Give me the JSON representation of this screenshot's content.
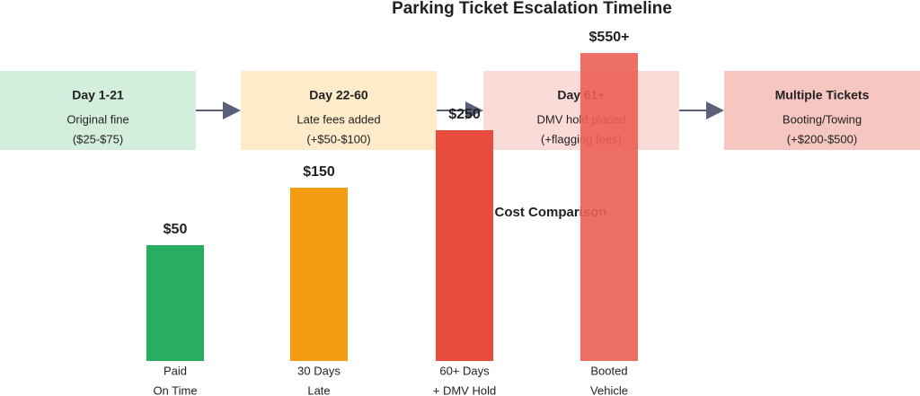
{
  "title": "Parking Ticket Escalation Timeline",
  "stages": [
    {
      "title": "Day 1-21",
      "lines": [
        "Original fine",
        "($25-$75)"
      ]
    },
    {
      "title": "Day 22-60",
      "lines": [
        "Late fees added",
        "(+$50-$100)"
      ]
    },
    {
      "title": "Day 61+",
      "lines": [
        "DMV hold placed",
        "(+flagging fees)"
      ]
    },
    {
      "title": "Multiple Tickets",
      "lines": [
        "Booting/Towing",
        "(+$200-$500)"
      ]
    }
  ],
  "comparison": {
    "title": "Cost Comparison",
    "bars": [
      {
        "amount": "$50",
        "label": [
          "Paid",
          "On Time"
        ]
      },
      {
        "amount": "$150",
        "label": [
          "30 Days",
          "Late"
        ]
      },
      {
        "amount": "$250",
        "label": [
          "60+ Days",
          "+ DMV Hold"
        ]
      },
      {
        "amount": "$550+",
        "label": [
          "Booted",
          "Vehicle"
        ]
      }
    ]
  }
}
